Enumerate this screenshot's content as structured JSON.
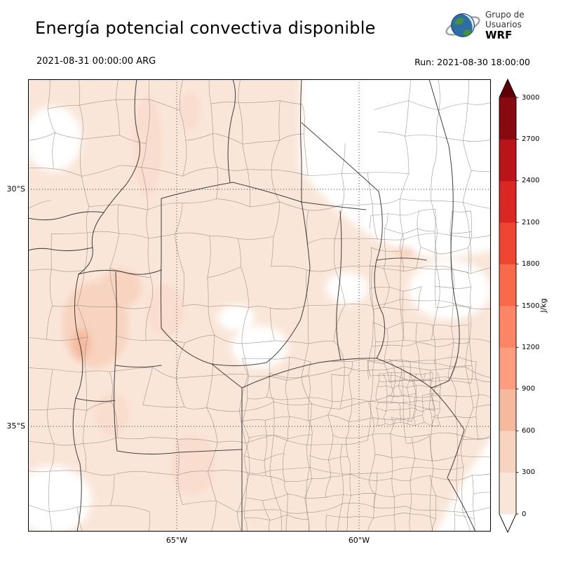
{
  "header": {
    "title": "Energía potencial convectiva disponible",
    "logo": {
      "line1": "Grupo de",
      "line2": "Usuarios",
      "line3": "WRF"
    }
  },
  "subheader": {
    "valid_time": "2021-08-31 00:00:00 ARG",
    "run_time": "Run: 2021-08-30 18:00:00"
  },
  "map": {
    "y_tick_labels": [
      "30°S",
      "35°S"
    ],
    "x_tick_labels": [
      "65°W",
      "60°W"
    ]
  },
  "colorbar": {
    "label": "J/kg",
    "ticks": [
      "0",
      "300",
      "600",
      "900",
      "1200",
      "1500",
      "1800",
      "2100",
      "2400",
      "2700",
      "3000"
    ],
    "band_colors": [
      "#fae6d9",
      "#f8d3c0",
      "#f5b99e",
      "#fc9d7f",
      "#fb8565",
      "#f96a4b",
      "#ef4533",
      "#d92723",
      "#b81419",
      "#870a11"
    ],
    "under_color": "#ffffff",
    "over_color": "#5f0009"
  },
  "chart_data": {
    "type": "heatmap",
    "title": "Energía potencial convectiva disponible",
    "variable": "CAPE (convective available potential energy)",
    "units": "J/kg",
    "valid_time": "2021-08-31 00:00:00 ARG",
    "run_time": "2021-08-30 18:00:00",
    "color_levels": [
      0,
      300,
      600,
      900,
      1200,
      1500,
      1800,
      2100,
      2400,
      2700,
      3000
    ],
    "colormap": "white-to-dark-red sequential (Reds), extended arrows both ends",
    "lat_gridlines_deg_S": [
      30,
      35
    ],
    "lon_gridlines_deg_W": [
      65,
      60
    ],
    "observed_pattern": "Most of the domain shaded 0-300 J/kg (pale pink); isolated maxima ~300-900 J/kg near 67-68W / 33-35S; white areas near 0"
  }
}
